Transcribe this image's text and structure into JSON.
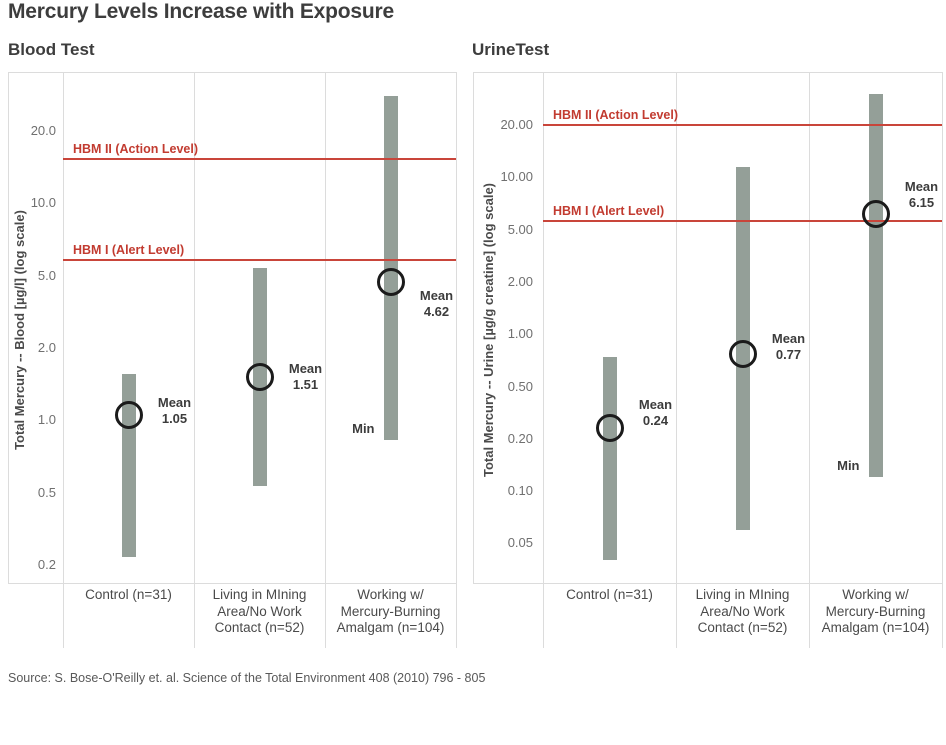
{
  "title": "Mercury Levels Increase with Exposure",
  "source": "Source: S. Bose-O'Reilly et. al. Science of the Total Environment 408 (2010) 796 - 805",
  "colors": {
    "bar": "#949f98",
    "reference_line_red": "#c9453a",
    "reference_label_red": "#c23b30",
    "marker_outline": "#1b1b1b",
    "grid": "#dcdcdc",
    "title_text": "#3d3d3d",
    "tick_text": "#707070"
  },
  "chart_data": [
    {
      "type": "range-bar",
      "panel_title": "Blood Test",
      "ylabel": "Total Mercury -- Blood [µg/l] (log scale)",
      "yscale": "log",
      "grid": "vertical category separators only",
      "ytick_labels": [
        "20.0",
        "10.0",
        "5.0",
        "2.0",
        "1.0",
        "0.5",
        "0.2"
      ],
      "ytick_values": [
        20,
        10,
        5,
        2,
        1,
        0.5,
        0.2
      ],
      "categories": [
        "Control (n=31)",
        "Living in MIning\nArea/No Work\nContact (n=52)",
        "Working w/\nMercury-Burning\nAmalgam (n=104)"
      ],
      "mean_label_prefix": "Mean",
      "series": [
        {
          "category": "Control (n=31)",
          "min": 0.22,
          "max": 1.55,
          "mean": 1.05,
          "mean_display": "1.05"
        },
        {
          "category": "Living in MIning Area/No Work Contact (n=52)",
          "min": 0.53,
          "max": 5.4,
          "mean": 1.51,
          "mean_display": "1.51"
        },
        {
          "category": "Working w/ Mercury-Burning Amalgam (n=104)",
          "min": 0.83,
          "max": 28,
          "mean": 4.62,
          "mean_display": "4.62",
          "min_label": "Min"
        }
      ],
      "reference_lines": [
        {
          "label": "HBM II (Action Level)",
          "value": 15.3
        },
        {
          "label": "HBM I (Alert Level)",
          "value": 5.8
        }
      ]
    },
    {
      "type": "range-bar",
      "panel_title": "UrineTest",
      "ylabel": "Total Mercury -- Urine [µg/g creatine] (log scale)",
      "yscale": "log",
      "grid": "vertical category separators only",
      "ytick_labels": [
        "20.00",
        "10.00",
        "5.00",
        "2.00",
        "1.00",
        "0.50",
        "0.20",
        "0.10",
        "0.05"
      ],
      "ytick_values": [
        20,
        10,
        5,
        2,
        1,
        0.5,
        0.2,
        0.1,
        0.05
      ],
      "categories": [
        "Control (n=31)",
        "Living in MIning\nArea/No Work\nContact (n=52)",
        "Working w/\nMercury-Burning\nAmalgam (n=104)"
      ],
      "mean_label_prefix": "Mean",
      "series": [
        {
          "category": "Control (n=31)",
          "min": 0.04,
          "max": 0.74,
          "mean": 0.24,
          "mean_display": "0.24"
        },
        {
          "category": "Living in MIning Area/No Work Contact (n=52)",
          "min": 0.06,
          "max": 11.5,
          "mean": 0.77,
          "mean_display": "0.77"
        },
        {
          "category": "Working w/ Mercury-Burning Amalgam (n=104)",
          "min": 0.12,
          "max": 30,
          "mean": 6.15,
          "mean_display": "6.15",
          "min_label": "Min"
        }
      ],
      "reference_lines": [
        {
          "label": "HBM II (Action Level)",
          "value": 20
        },
        {
          "label": "HBM I (Alert Level)",
          "value": 5.6
        }
      ]
    }
  ]
}
